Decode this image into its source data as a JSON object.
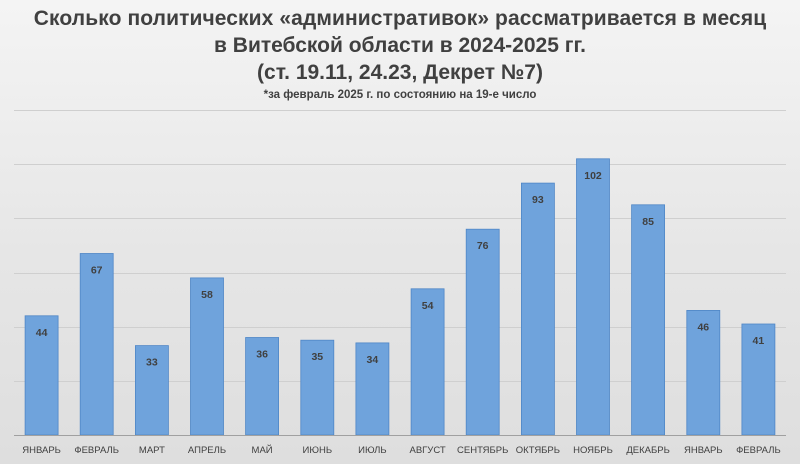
{
  "chart_data": {
    "type": "bar",
    "title_lines": [
      "Сколько политических «административок» рассматривается в месяц",
      "в Витебской области в 2024-2025 гг.",
      "(ст. 19.11, 24.23, Декрет №7)"
    ],
    "subtitle": "*за февраль 2025 г. по состоянию на 19-е число",
    "categories": [
      "ЯНВАРЬ",
      "ФЕВРАЛЬ",
      "МАРТ",
      "АПРЕЛЬ",
      "МАЙ",
      "ИЮНЬ",
      "ИЮЛЬ",
      "АВГУСТ",
      "СЕНТЯБРЬ",
      "ОКТЯБРЬ",
      "НОЯБРЬ",
      "ДЕКАБРЬ",
      "ЯНВАРЬ",
      "ФЕВРАЛЬ"
    ],
    "values": [
      44,
      67,
      33,
      58,
      36,
      35,
      34,
      54,
      76,
      93,
      102,
      85,
      46,
      41
    ],
    "ylim": [
      0,
      120
    ],
    "y_gridlines": [
      20,
      40,
      60,
      80,
      100,
      120
    ],
    "y_tick_labels_shown": false,
    "grid": true,
    "legend": "none",
    "colors": {
      "bar": "#6fa3dc",
      "bar_edge": "#4f86c6",
      "grid": "#cfcfcf",
      "axis": "#a0a0a0",
      "title": "#404040",
      "label": "#404040"
    }
  }
}
